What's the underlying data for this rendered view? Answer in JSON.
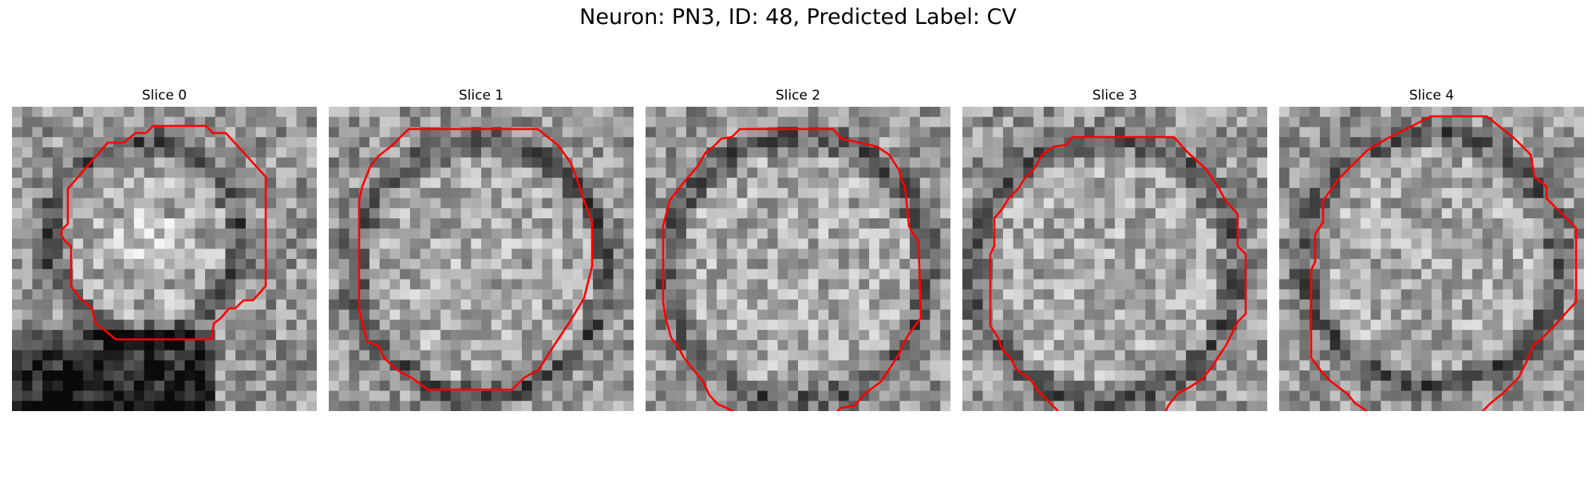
{
  "figure": {
    "title": "Neuron: PN3, ID: 48, Predicted Label: CV",
    "panels": [
      {
        "title": "Slice 0"
      },
      {
        "title": "Slice 1"
      },
      {
        "title": "Slice 2"
      },
      {
        "title": "Slice 3"
      },
      {
        "title": "Slice 4"
      }
    ]
  },
  "colors": {
    "contour": "#ff0000",
    "background": "#ffffff"
  }
}
